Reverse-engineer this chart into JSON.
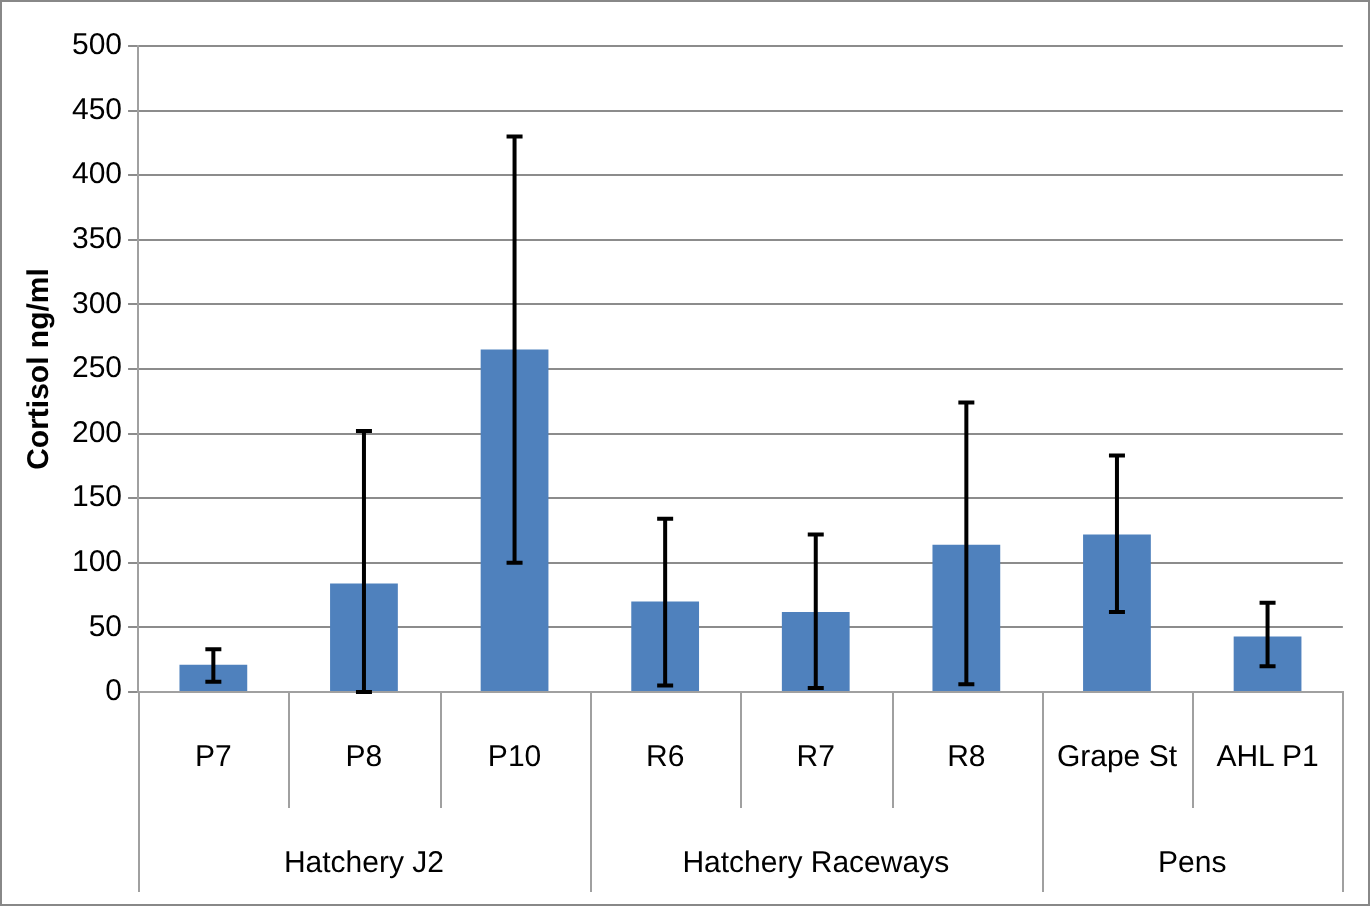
{
  "chart_data": {
    "type": "bar",
    "ylabel": "Cortisol ng/ml",
    "categories": [
      "P7",
      "P8",
      "P10",
      "R6",
      "R7",
      "R8",
      "Grape St",
      "AHL P1"
    ],
    "values": [
      21,
      84,
      265,
      70,
      62,
      114,
      122,
      43
    ],
    "errors": [
      [
        8,
        33
      ],
      [
        0,
        202
      ],
      [
        100,
        430
      ],
      [
        5,
        134
      ],
      [
        3,
        122
      ],
      [
        6,
        224
      ],
      [
        62,
        183
      ],
      [
        20,
        69
      ]
    ],
    "color": "#4f81bd",
    "ylim": [
      0,
      500
    ],
    "yticks": [
      0,
      50,
      100,
      150,
      200,
      250,
      300,
      350,
      400,
      450,
      500
    ],
    "grid": "y",
    "annotations": [
      "Hatchery J2",
      "Hatchery Raceways",
      "Pens"
    ]
  }
}
